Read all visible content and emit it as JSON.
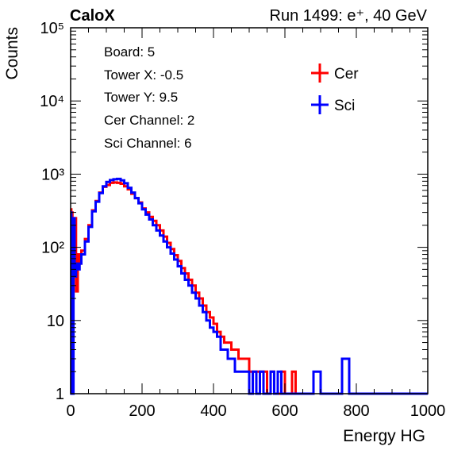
{
  "chart_data": {
    "type": "line",
    "title_left": "CaloX",
    "title_right": "Run 1499: e⁺, 40 GeV",
    "xlabel": "Energy HG",
    "ylabel": "Counts",
    "xlim": [
      0,
      1000
    ],
    "ylim": [
      1,
      100000
    ],
    "yscale": "log",
    "x_ticks": [
      "0",
      "200",
      "400",
      "600",
      "800",
      "1000"
    ],
    "y_ticks": [
      "1",
      "10",
      "10²",
      "10³",
      "10⁴",
      "10⁵"
    ],
    "info_lines": [
      "Board: 5",
      "Tower X: -0.5",
      "Tower Y: 9.5",
      "Cer Channel: 2",
      "Sci Channel: 6"
    ],
    "legend_position": "top-right",
    "series": [
      {
        "name": "Cer",
        "color": "#ff0000",
        "x": [
          0,
          2,
          5,
          8,
          11,
          15,
          20,
          25,
          30,
          40,
          50,
          60,
          70,
          80,
          90,
          100,
          110,
          120,
          130,
          140,
          150,
          160,
          170,
          180,
          190,
          200,
          210,
          220,
          230,
          240,
          250,
          260,
          270,
          280,
          290,
          300,
          310,
          320,
          330,
          340,
          350,
          360,
          370,
          380,
          390,
          400,
          410,
          420,
          430,
          440,
          450,
          460,
          470,
          480,
          490,
          500,
          510,
          520,
          530,
          540,
          550,
          560,
          570,
          580,
          590,
          600,
          610,
          620,
          630
        ],
        "values": [
          330,
          300,
          20,
          60,
          250,
          25,
          80,
          60,
          90,
          130,
          200,
          320,
          430,
          560,
          670,
          710,
          760,
          770,
          760,
          740,
          680,
          620,
          540,
          470,
          410,
          340,
          300,
          260,
          230,
          200,
          170,
          140,
          115,
          95,
          78,
          65,
          52,
          44,
          36,
          30,
          24,
          20,
          16,
          13,
          11,
          9,
          7,
          6,
          5,
          5,
          4,
          4,
          3,
          3,
          3,
          2,
          2,
          2,
          2,
          2,
          1,
          2,
          1,
          1,
          2,
          1,
          1,
          2,
          1
        ]
      },
      {
        "name": "Sci",
        "color": "#0000ff",
        "x": [
          0,
          2,
          5,
          8,
          11,
          15,
          20,
          25,
          30,
          40,
          50,
          60,
          70,
          80,
          90,
          100,
          110,
          120,
          130,
          140,
          150,
          160,
          170,
          180,
          190,
          200,
          210,
          220,
          230,
          240,
          250,
          260,
          270,
          280,
          290,
          300,
          310,
          320,
          330,
          340,
          350,
          360,
          370,
          380,
          390,
          400,
          410,
          420,
          430,
          440,
          450,
          460,
          470,
          480,
          490,
          500,
          510,
          520,
          530,
          540,
          550,
          560,
          570,
          580,
          590,
          600,
          620,
          640,
          660,
          680,
          700,
          720,
          740,
          760,
          780,
          800,
          1000
        ],
        "values": [
          300,
          1,
          1,
          250,
          40,
          60,
          50,
          60,
          80,
          120,
          190,
          310,
          420,
          550,
          680,
          780,
          830,
          850,
          860,
          820,
          750,
          650,
          560,
          470,
          400,
          330,
          280,
          240,
          200,
          170,
          145,
          120,
          100,
          82,
          68,
          55,
          44,
          36,
          30,
          24,
          20,
          16,
          13,
          10,
          8,
          7,
          6,
          4,
          4,
          3,
          3,
          2,
          2,
          2,
          2,
          1,
          2,
          1,
          2,
          1,
          1,
          2,
          1,
          2,
          1,
          1,
          1,
          1,
          1,
          2,
          1,
          1,
          1,
          3,
          1,
          1,
          1
        ]
      }
    ]
  }
}
